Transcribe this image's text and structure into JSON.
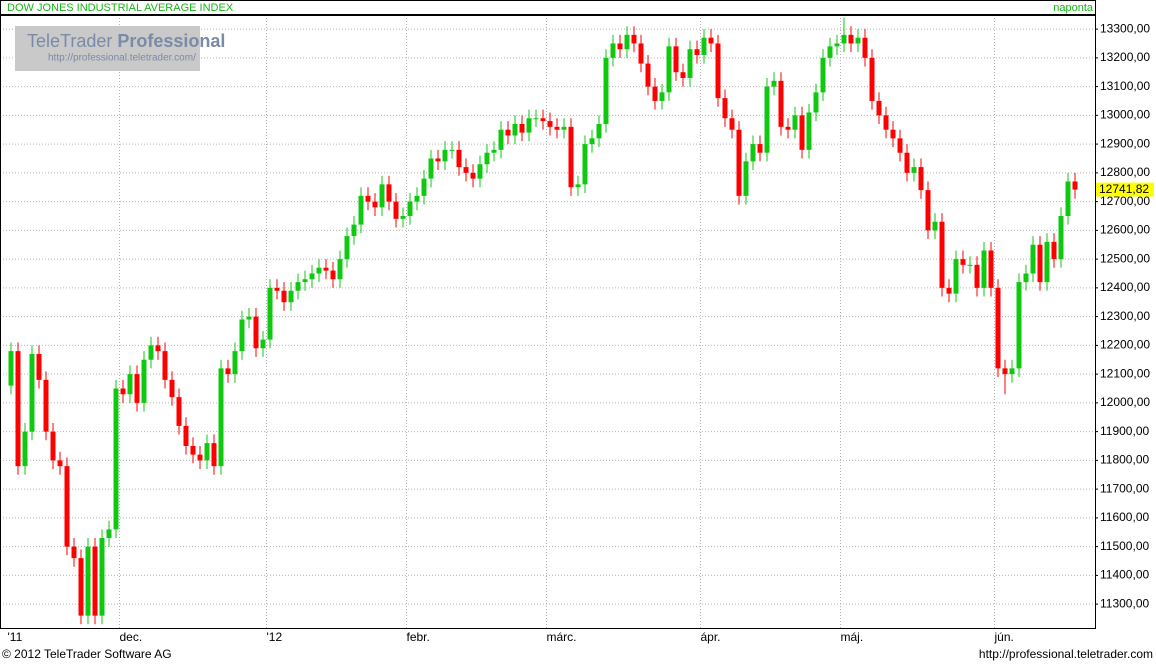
{
  "header": {
    "title": "DOW JONES INDUSTRIAL AVERAGE INDEX",
    "frequency": "naponta"
  },
  "logo": {
    "brand": "TeleTrader",
    "edition": "Professional",
    "url": "http://professional.teletrader.com/"
  },
  "footer": {
    "copyright": "© 2012 TeleTrader Software AG",
    "url": "http://professional.teletrader.com"
  },
  "chart_data": {
    "type": "candlestick",
    "categories": [
      "'11",
      null,
      null,
      null,
      null,
      null,
      null,
      null,
      null,
      null,
      null,
      null,
      null,
      null,
      null,
      null,
      "dec.",
      null,
      null,
      null,
      null,
      null,
      null,
      null,
      null,
      null,
      null,
      null,
      null,
      null,
      null,
      null,
      null,
      null,
      null,
      null,
      null,
      "'12",
      null,
      null,
      null,
      null,
      null,
      null,
      null,
      null,
      null,
      null,
      null,
      null,
      null,
      null,
      null,
      null,
      null,
      null,
      null,
      "febr.",
      null,
      null,
      null,
      null,
      null,
      null,
      null,
      null,
      null,
      null,
      null,
      null,
      null,
      null,
      null,
      null,
      null,
      null,
      null,
      "márc.",
      null,
      null,
      null,
      null,
      null,
      null,
      null,
      null,
      null,
      null,
      null,
      null,
      null,
      null,
      null,
      null,
      null,
      null,
      null,
      null,
      null,
      "ápr.",
      null,
      null,
      null,
      null,
      null,
      null,
      null,
      null,
      null,
      null,
      null,
      null,
      null,
      null,
      null,
      null,
      null,
      null,
      null,
      "máj.",
      null,
      null,
      null,
      null,
      null,
      null,
      null,
      null,
      null,
      null,
      null,
      null,
      null,
      null,
      null,
      null,
      null,
      null,
      null,
      null,
      null,
      "jún.",
      null,
      null,
      null,
      null,
      null,
      null,
      null,
      null,
      null,
      null,
      null
    ],
    "open": [
      12060,
      12180,
      11780,
      11900,
      12170,
      12080,
      11900,
      11800,
      11780,
      11500,
      11460,
      11260,
      11500,
      11260,
      11530,
      11560,
      12050,
      12030,
      12100,
      12000,
      12150,
      12200,
      12180,
      12080,
      12020,
      11920,
      11850,
      11820,
      11800,
      11860,
      11780,
      12120,
      12100,
      12180,
      12290,
      12300,
      12190,
      12220,
      12400,
      12390,
      12350,
      12390,
      12420,
      12430,
      12450,
      12470,
      12460,
      12430,
      12500,
      12580,
      12620,
      12720,
      12700,
      12680,
      12760,
      12700,
      12640,
      12650,
      12700,
      12720,
      12780,
      12850,
      12840,
      12880,
      12880,
      12820,
      12800,
      12780,
      12830,
      12870,
      12880,
      12950,
      12930,
      12970,
      12940,
      12990,
      12990,
      12980,
      12960,
      12950,
      12960,
      12750,
      12760,
      12900,
      12920,
      12970,
      13200,
      13250,
      13230,
      13280,
      13250,
      13180,
      13100,
      13050,
      13080,
      13240,
      13150,
      13130,
      13230,
      13210,
      13270,
      13250,
      13060,
      12990,
      12950,
      12720,
      12840,
      12900,
      12870,
      13100,
      13120,
      12960,
      12950,
      13000,
      12880,
      13010,
      13080,
      13200,
      13240,
      13250,
      13280,
      13250,
      13270,
      13200,
      13050,
      13000,
      12950,
      12920,
      12870,
      12800,
      12820,
      12740,
      12600,
      12630,
      12400,
      12380,
      12500,
      12480,
      12480,
      12400,
      12530,
      12400,
      12120,
      12100,
      12120,
      12420,
      12450,
      12550,
      12420,
      12560,
      12500,
      12650,
      12770
    ],
    "high": [
      12210,
      12210,
      11930,
      12200,
      12200,
      12110,
      11930,
      11830,
      11810,
      11530,
      11490,
      11530,
      11530,
      11560,
      11590,
      12080,
      12080,
      12130,
      12130,
      12180,
      12230,
      12230,
      12210,
      12110,
      12050,
      11950,
      11880,
      11850,
      11890,
      11890,
      12150,
      12150,
      12210,
      12320,
      12330,
      12330,
      12250,
      12430,
      12430,
      12420,
      12420,
      12450,
      12460,
      12480,
      12500,
      12500,
      12490,
      12530,
      12610,
      12650,
      12750,
      12750,
      12730,
      12790,
      12790,
      12730,
      12680,
      12730,
      12750,
      12810,
      12880,
      12880,
      12910,
      12910,
      12910,
      12850,
      12830,
      12860,
      12900,
      12910,
      12980,
      12980,
      13000,
      13000,
      13020,
      13020,
      13020,
      13010,
      12990,
      12990,
      12990,
      12790,
      12930,
      12950,
      13000,
      13230,
      13280,
      13280,
      13310,
      13310,
      13280,
      13210,
      13130,
      13110,
      13270,
      13270,
      13180,
      13260,
      13260,
      13300,
      13300,
      13280,
      13090,
      13020,
      12980,
      12870,
      12930,
      12930,
      13130,
      13150,
      13150,
      12990,
      13030,
      13030,
      13040,
      13110,
      13230,
      13270,
      13280,
      13340,
      13310,
      13300,
      13300,
      13230,
      13080,
      13030,
      12980,
      12950,
      12900,
      12850,
      12850,
      12770,
      12660,
      12660,
      12430,
      12530,
      12530,
      12510,
      12510,
      12560,
      12560,
      12430,
      12150,
      12150,
      12450,
      12480,
      12580,
      12580,
      12590,
      12590,
      12680,
      12800,
      12800
    ],
    "low": [
      12030,
      11750,
      11750,
      11870,
      12050,
      11870,
      11770,
      11750,
      11470,
      11430,
      11230,
      11230,
      11230,
      11230,
      11500,
      11530,
      12000,
      12000,
      11970,
      11970,
      12120,
      12150,
      12050,
      11990,
      11890,
      11820,
      11790,
      11770,
      11770,
      11750,
      11750,
      12070,
      12070,
      12150,
      12260,
      12160,
      12160,
      12190,
      12360,
      12320,
      12320,
      12360,
      12390,
      12400,
      12420,
      12430,
      12400,
      12400,
      12470,
      12550,
      12590,
      12670,
      12650,
      12650,
      12670,
      12610,
      12610,
      12620,
      12670,
      12690,
      12750,
      12810,
      12810,
      12850,
      12790,
      12770,
      12750,
      12750,
      12800,
      12840,
      12850,
      12900,
      12900,
      12910,
      12910,
      12960,
      12950,
      12930,
      12920,
      12920,
      12720,
      12720,
      12730,
      12870,
      12890,
      12940,
      13170,
      13200,
      13200,
      13220,
      13150,
      13070,
      13020,
      13020,
      13050,
      13120,
      13100,
      13100,
      13180,
      13180,
      13220,
      13030,
      12960,
      12920,
      12690,
      12690,
      12810,
      12840,
      12840,
      13070,
      12930,
      12920,
      12920,
      12850,
      12850,
      12980,
      13050,
      13170,
      13210,
      13220,
      13220,
      13220,
      13170,
      13020,
      12970,
      12920,
      12890,
      12840,
      12770,
      12770,
      12710,
      12570,
      12570,
      12370,
      12350,
      12350,
      12450,
      12450,
      12370,
      12370,
      12370,
      12090,
      12030,
      12070,
      12090,
      12390,
      12420,
      12390,
      12390,
      12470,
      12470,
      12620,
      12710
    ],
    "close": [
      12180,
      11780,
      11900,
      12170,
      12080,
      11900,
      11800,
      11780,
      11500,
      11460,
      11260,
      11500,
      11260,
      11530,
      11560,
      12050,
      12030,
      12100,
      12000,
      12150,
      12200,
      12180,
      12080,
      12020,
      11920,
      11850,
      11820,
      11800,
      11860,
      11780,
      12120,
      12100,
      12180,
      12290,
      12300,
      12190,
      12220,
      12400,
      12390,
      12350,
      12390,
      12420,
      12430,
      12450,
      12470,
      12460,
      12430,
      12500,
      12580,
      12620,
      12720,
      12700,
      12680,
      12760,
      12700,
      12640,
      12650,
      12700,
      12720,
      12780,
      12850,
      12840,
      12880,
      12880,
      12820,
      12800,
      12780,
      12830,
      12870,
      12880,
      12950,
      12930,
      12970,
      12940,
      12990,
      12990,
      12980,
      12960,
      12950,
      12960,
      12750,
      12760,
      12900,
      12920,
      12970,
      13200,
      13250,
      13230,
      13280,
      13250,
      13180,
      13100,
      13050,
      13080,
      13240,
      13150,
      13130,
      13230,
      13210,
      13270,
      13250,
      13060,
      12990,
      12950,
      12720,
      12840,
      12900,
      12870,
      13100,
      13120,
      12960,
      12950,
      13000,
      12880,
      13010,
      13080,
      13200,
      13240,
      13250,
      13280,
      13250,
      13270,
      13200,
      13050,
      13000,
      12950,
      12920,
      12870,
      12800,
      12820,
      12740,
      12600,
      12630,
      12400,
      12380,
      12500,
      12480,
      12480,
      12400,
      12530,
      12400,
      12120,
      12100,
      12120,
      12420,
      12450,
      12550,
      12420,
      12560,
      12500,
      12650,
      12770,
      12741.82
    ],
    "up_color": "#10c810",
    "down_color": "#ff0000",
    "last_value": {
      "value": 12741.82,
      "label": "12741,82"
    },
    "ylim": [
      11217,
      13349
    ],
    "yticks": [
      {
        "value": 11300,
        "label": "11300,00"
      },
      {
        "value": 11400,
        "label": "11400,00"
      },
      {
        "value": 11500,
        "label": "11500,00"
      },
      {
        "value": 11600,
        "label": "11600,00"
      },
      {
        "value": 11700,
        "label": "11700,00"
      },
      {
        "value": 11800,
        "label": "11800,00"
      },
      {
        "value": 11900,
        "label": "11900,00"
      },
      {
        "value": 12000,
        "label": "12000,00"
      },
      {
        "value": 12100,
        "label": "12100,00"
      },
      {
        "value": 12200,
        "label": "12200,00"
      },
      {
        "value": 12300,
        "label": "12300,00"
      },
      {
        "value": 12400,
        "label": "12400,00"
      },
      {
        "value": 12500,
        "label": "12500,00"
      },
      {
        "value": 12600,
        "label": "12600,00"
      },
      {
        "value": 12700,
        "label": "12700,00"
      },
      {
        "value": 12800,
        "label": "12800,00"
      },
      {
        "value": 12900,
        "label": "12900,00"
      },
      {
        "value": 13000,
        "label": "13000,00"
      },
      {
        "value": 13100,
        "label": "13100,00"
      },
      {
        "value": 13200,
        "label": "13200,00"
      },
      {
        "value": 13300,
        "label": "13300,00"
      }
    ],
    "grid": true
  }
}
